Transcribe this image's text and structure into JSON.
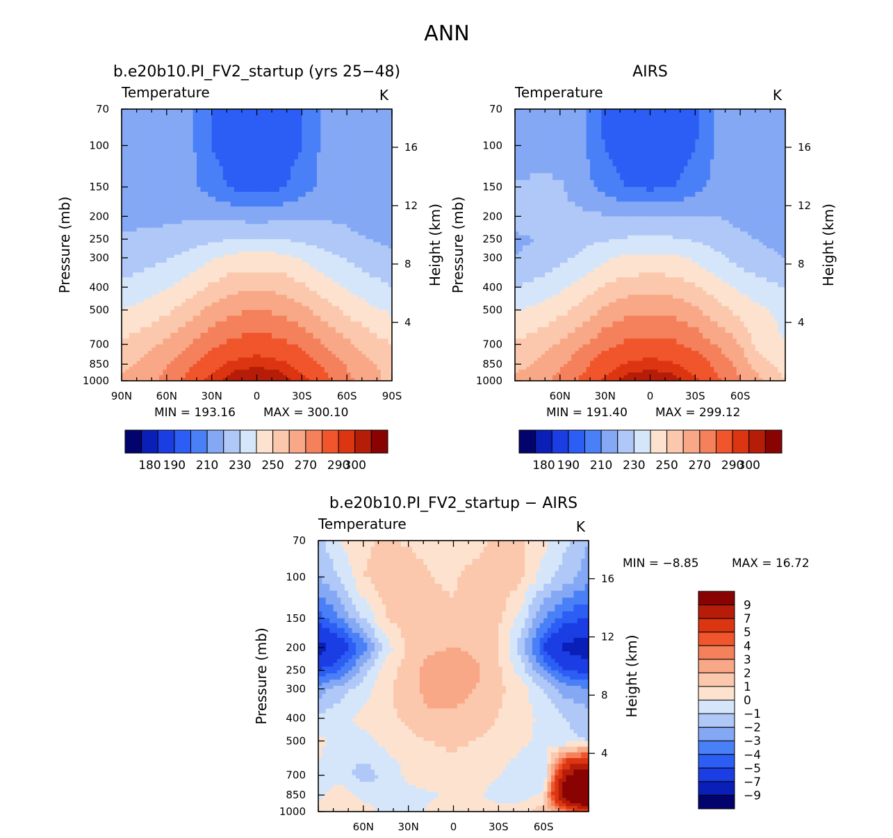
{
  "figure": {
    "title": "ANN"
  },
  "panels": [
    {
      "id": "model",
      "title": "b.e20b10.PI_FV2_startup (yrs 25−48)",
      "left_label": "Temperature",
      "units": "K",
      "ylabel": "Pressure (mb)",
      "y2label": "Height (km)",
      "min_label": "MIN = 193.16",
      "max_label": "MAX = 300.10",
      "xticks": [
        "90N",
        "60N",
        "30N",
        "0",
        "30S",
        "60S",
        "90S"
      ],
      "yticks": [
        "70",
        "100",
        "150",
        "200",
        "250",
        "300",
        "400",
        "500",
        "700",
        "850",
        "1000"
      ],
      "y2ticks": [
        "4",
        "8",
        "12",
        "16"
      ],
      "colorbar_labels": [
        "180",
        "190",
        "210",
        "230",
        "250",
        "270",
        "290",
        "300"
      ]
    },
    {
      "id": "obs",
      "title": "AIRS",
      "left_label": "Temperature",
      "units": "K",
      "ylabel": "Pressure (mb)",
      "y2label": "Height (km)",
      "min_label": "MIN = 191.40",
      "max_label": "MAX = 299.12",
      "xticks": [
        "60N",
        "30N",
        "0",
        "30S",
        "60S"
      ],
      "yticks": [
        "70",
        "100",
        "150",
        "200",
        "250",
        "300",
        "400",
        "500",
        "700",
        "850",
        "1000"
      ],
      "y2ticks": [
        "4",
        "8",
        "12",
        "16"
      ],
      "colorbar_labels": [
        "180",
        "190",
        "210",
        "230",
        "250",
        "270",
        "290",
        "300"
      ]
    },
    {
      "id": "diff",
      "title": "b.e20b10.PI_FV2_startup − AIRS",
      "left_label": "Temperature",
      "units": "K",
      "ylabel": "Pressure (mb)",
      "y2label": "Height (km)",
      "min_label": "MIN = −8.85",
      "max_label": "MAX = 16.72",
      "xticks": [
        "60N",
        "30N",
        "0",
        "30S",
        "60S"
      ],
      "yticks": [
        "70",
        "100",
        "150",
        "200",
        "250",
        "300",
        "400",
        "500",
        "700",
        "850",
        "1000"
      ],
      "y2ticks": [
        "4",
        "8",
        "12",
        "16"
      ],
      "colorbar_labels": [
        "9",
        "7",
        "5",
        "4",
        "3",
        "2",
        "1",
        "0",
        "−1",
        "−2",
        "−3",
        "−4",
        "−5",
        "−7",
        "−9"
      ]
    }
  ],
  "chart_data": [
    {
      "type": "heatmap",
      "title": "b.e20b10.PI_FV2_startup (yrs 25−48)",
      "variable": "Temperature",
      "units": "K",
      "xlabel": "",
      "ylabel": "Pressure (mb)",
      "y2label": "Height (km)",
      "x_lat": [
        90,
        75,
        60,
        45,
        30,
        15,
        0,
        -15,
        -30,
        -45,
        -60,
        -75,
        -90
      ],
      "y_pressure": [
        70,
        100,
        150,
        200,
        250,
        300,
        400,
        500,
        700,
        850,
        1000
      ],
      "ylim": [
        1000,
        70
      ],
      "xlim": [
        90,
        -90
      ],
      "y_scale": "log",
      "levels": [
        180,
        185,
        190,
        200,
        210,
        220,
        230,
        240,
        250,
        260,
        270,
        280,
        290,
        295,
        300
      ],
      "colors": [
        "#03036e",
        "#0a1fb8",
        "#1a3ee3",
        "#2c5ef5",
        "#4a80f7",
        "#85a8f5",
        "#b0c8f7",
        "#d6e6fa",
        "#fde3cf",
        "#fbc8ad",
        "#f8a886",
        "#f5805c",
        "#f0552b",
        "#dc3511",
        "#b61d08",
        "#8a0303"
      ],
      "values": [
        [
          210,
          214,
          217,
          212,
          199,
          193,
          193,
          193,
          199,
          212,
          217,
          214,
          210
        ],
        [
          212,
          215,
          218,
          213,
          200,
          194,
          194,
          194,
          200,
          213,
          218,
          215,
          212
        ],
        [
          215,
          216,
          217,
          213,
          205,
          198,
          197,
          198,
          205,
          213,
          217,
          214,
          212
        ],
        [
          217,
          218,
          218,
          219,
          219,
          217,
          216,
          217,
          219,
          219,
          218,
          212,
          210
        ],
        [
          221,
          222,
          223,
          225,
          228,
          230,
          231,
          230,
          228,
          225,
          223,
          220,
          218
        ],
        [
          224,
          226,
          229,
          233,
          239,
          243,
          244,
          243,
          239,
          233,
          229,
          225,
          222
        ],
        [
          232,
          235,
          239,
          245,
          252,
          257,
          258,
          257,
          252,
          245,
          239,
          234,
          230
        ],
        [
          240,
          243,
          248,
          255,
          263,
          268,
          270,
          268,
          263,
          255,
          248,
          242,
          238
        ],
        [
          252,
          256,
          262,
          270,
          278,
          283,
          285,
          283,
          278,
          270,
          262,
          255,
          250
        ],
        [
          258,
          262,
          269,
          278,
          287,
          292,
          294,
          292,
          287,
          278,
          269,
          262,
          256
        ],
        [
          262,
          265,
          273,
          283,
          293,
          299,
          300,
          299,
          293,
          283,
          273,
          263,
          258
        ]
      ]
    },
    {
      "type": "heatmap",
      "title": "AIRS",
      "variable": "Temperature",
      "units": "K",
      "xlabel": "",
      "ylabel": "Pressure (mb)",
      "y2label": "Height (km)",
      "x_lat": [
        90,
        75,
        60,
        45,
        30,
        15,
        0,
        -15,
        -30,
        -45,
        -60,
        -75,
        -90
      ],
      "y_pressure": [
        70,
        100,
        150,
        200,
        250,
        300,
        400,
        500,
        700,
        850,
        1000
      ],
      "ylim": [
        1000,
        70
      ],
      "xlim": [
        90,
        -90
      ],
      "y_scale": "log",
      "levels": [
        180,
        185,
        190,
        200,
        210,
        220,
        230,
        240,
        250,
        260,
        270,
        280,
        290,
        295,
        300
      ],
      "colors": [
        "#03036e",
        "#0a1fb8",
        "#1a3ee3",
        "#2c5ef5",
        "#4a80f7",
        "#85a8f5",
        "#b0c8f7",
        "#d6e6fa",
        "#fde3cf",
        "#fbc8ad",
        "#f8a886",
        "#f5805c",
        "#f0552b",
        "#dc3511",
        "#b61d08",
        "#8a0303"
      ],
      "values": [
        [
          212,
          214,
          215,
          211,
          198,
          192,
          191,
          192,
          198,
          211,
          215,
          214,
          214
        ],
        [
          214,
          216,
          216,
          212,
          199,
          193,
          192,
          193,
          199,
          212,
          216,
          216,
          215
        ],
        [
          221,
          222,
          221,
          214,
          206,
          199,
          198,
          199,
          206,
          214,
          218,
          216,
          216
        ],
        [
          222,
          223,
          223,
          222,
          221,
          220,
          219,
          220,
          221,
          220,
          217,
          216,
          216
        ],
        [
          219,
          220,
          224,
          227,
          229,
          231,
          231,
          231,
          229,
          226,
          222,
          219,
          218
        ],
        [
          220,
          222,
          227,
          232,
          238,
          242,
          243,
          242,
          238,
          232,
          226,
          222,
          220
        ],
        [
          230,
          233,
          238,
          244,
          251,
          255,
          256,
          255,
          251,
          244,
          238,
          233,
          230
        ],
        [
          239,
          242,
          247,
          254,
          262,
          267,
          268,
          267,
          262,
          254,
          247,
          241,
          238
        ],
        [
          251,
          255,
          261,
          269,
          277,
          282,
          284,
          282,
          277,
          269,
          260,
          243,
          240
        ],
        [
          257,
          261,
          268,
          277,
          286,
          291,
          293,
          291,
          286,
          277,
          266,
          253,
          246
        ],
        [
          262,
          266,
          273,
          282,
          292,
          298,
          299,
          298,
          292,
          282,
          271,
          260,
          250
        ]
      ]
    },
    {
      "type": "heatmap",
      "title": "b.e20b10.PI_FV2_startup − AIRS",
      "variable": "Temperature",
      "units": "K",
      "xlabel": "",
      "ylabel": "Pressure (mb)",
      "y2label": "Height (km)",
      "x_lat": [
        90,
        75,
        60,
        45,
        30,
        15,
        0,
        -15,
        -30,
        -45,
        -60,
        -75,
        -90
      ],
      "y_pressure": [
        70,
        100,
        150,
        200,
        250,
        300,
        400,
        500,
        700,
        850,
        1000
      ],
      "ylim": [
        1000,
        70
      ],
      "xlim": [
        90,
        -90
      ],
      "y_scale": "log",
      "levels": [
        -9,
        -7,
        -5,
        -4,
        -3,
        -2,
        -1,
        0,
        1,
        2,
        3,
        4,
        5,
        7,
        9
      ],
      "colors": [
        "#03036e",
        "#0a1fb8",
        "#1a3ee3",
        "#2c5ef5",
        "#4a80f7",
        "#85a8f5",
        "#b0c8f7",
        "#d6e6fa",
        "#fde3cf",
        "#fbc8ad",
        "#f8a886",
        "#f5805c",
        "#f0552b",
        "#dc3511",
        "#b61d08",
        "#8a0303"
      ],
      "values": [
        [
          -1.5,
          0.2,
          0.8,
          1.2,
          0.8,
          0.4,
          0.3,
          0.5,
          1.5,
          1.2,
          0.3,
          -0.8,
          -2.0
        ],
        [
          -2.0,
          -1.0,
          1.0,
          1.5,
          1.8,
          1.0,
          0.8,
          1.5,
          2.0,
          1.2,
          -0.5,
          -1.5,
          -2.5
        ],
        [
          -4.5,
          -3.0,
          -1.0,
          1.0,
          1.5,
          1.5,
          1.2,
          1.5,
          1.2,
          -0.5,
          -3.0,
          -4.5,
          -5.0
        ],
        [
          -8.0,
          -6.0,
          -3.5,
          -0.5,
          1.2,
          1.8,
          2.0,
          1.8,
          1.0,
          -1.5,
          -5.0,
          -7.5,
          -8.5
        ],
        [
          -5.0,
          -4.0,
          -1.5,
          0.5,
          1.5,
          2.5,
          2.8,
          2.2,
          1.2,
          -0.5,
          -3.0,
          -5.0,
          -5.5
        ],
        [
          -2.5,
          -1.5,
          -0.5,
          0.8,
          1.5,
          2.5,
          2.5,
          2.0,
          1.2,
          0.5,
          -1.0,
          -2.5,
          -3.0
        ],
        [
          -0.8,
          -0.3,
          0.3,
          0.8,
          1.2,
          1.8,
          1.8,
          1.5,
          1.0,
          0.3,
          -0.2,
          -1.0,
          -1.5
        ],
        [
          0.3,
          -0.5,
          -0.3,
          0.3,
          0.8,
          1.0,
          1.2,
          1.0,
          0.5,
          0.2,
          -0.3,
          -0.8,
          -1.0
        ],
        [
          -0.3,
          -0.5,
          -1.5,
          -0.8,
          0.2,
          0.5,
          0.6,
          0.4,
          0.0,
          -0.5,
          -1.0,
          9.0,
          12.0
        ],
        [
          -0.2,
          0.5,
          -0.3,
          -0.5,
          -0.3,
          -0.1,
          0.1,
          0.2,
          -0.4,
          -0.6,
          0.3,
          12.0,
          16.0
        ],
        [
          0.2,
          0.8,
          0.5,
          -0.3,
          -0.4,
          0.2,
          0.3,
          0.3,
          0.5,
          0.8,
          1.5,
          3.0,
          6.0
        ]
      ]
    }
  ]
}
